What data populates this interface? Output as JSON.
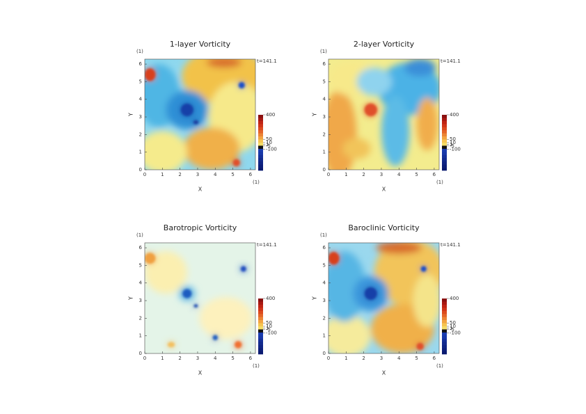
{
  "chart_data": [
    {
      "type": "heatmap",
      "title": "1-layer Vorticity",
      "xlabel": "X",
      "ylabel": "Y",
      "x_unit": "(1)",
      "y_unit": "(1)",
      "time_label": "t=141.1",
      "xlim": [
        0,
        6.28
      ],
      "ylim": [
        0,
        6.28
      ],
      "xticks": [
        0,
        1,
        2,
        3,
        4,
        5,
        6
      ],
      "yticks": [
        0,
        1,
        2,
        3,
        4,
        5,
        6
      ],
      "colorbar_ticks": [
        400,
        50,
        10,
        1,
        -5,
        -100
      ]
    },
    {
      "type": "heatmap",
      "title": "2-layer Vorticity",
      "xlabel": "X",
      "ylabel": "Y",
      "x_unit": "(1)",
      "y_unit": "(1)",
      "time_label": "t=141.1",
      "xlim": [
        0,
        6.28
      ],
      "ylim": [
        0,
        6.28
      ],
      "xticks": [
        0,
        1,
        2,
        3,
        4,
        5,
        6
      ],
      "yticks": [
        0,
        1,
        2,
        3,
        4,
        5,
        6
      ],
      "colorbar_ticks": [
        400,
        50,
        10,
        1,
        -5,
        -100
      ]
    },
    {
      "type": "heatmap",
      "title": "Barotropic Vorticity",
      "xlabel": "X",
      "ylabel": "Y",
      "x_unit": "(1)",
      "y_unit": "(1)",
      "time_label": "t=141.1",
      "xlim": [
        0,
        6.28
      ],
      "ylim": [
        0,
        6.28
      ],
      "xticks": [
        0,
        1,
        2,
        3,
        4,
        5,
        6
      ],
      "yticks": [
        0,
        1,
        2,
        3,
        4,
        5,
        6
      ],
      "colorbar_ticks": [
        400,
        50,
        10,
        1,
        -5,
        -100
      ]
    },
    {
      "type": "heatmap",
      "title": "Baroclinic Vorticity",
      "xlabel": "X",
      "ylabel": "Y",
      "x_unit": "(1)",
      "y_unit": "(1)",
      "time_label": "t=141.1",
      "xlim": [
        0,
        6.28
      ],
      "ylim": [
        0,
        6.28
      ],
      "xticks": [
        0,
        1,
        2,
        3,
        4,
        5,
        6
      ],
      "yticks": [
        0,
        1,
        2,
        3,
        4,
        5,
        6
      ],
      "colorbar_ticks": [
        400,
        50,
        10,
        1,
        -5,
        -100
      ]
    }
  ]
}
